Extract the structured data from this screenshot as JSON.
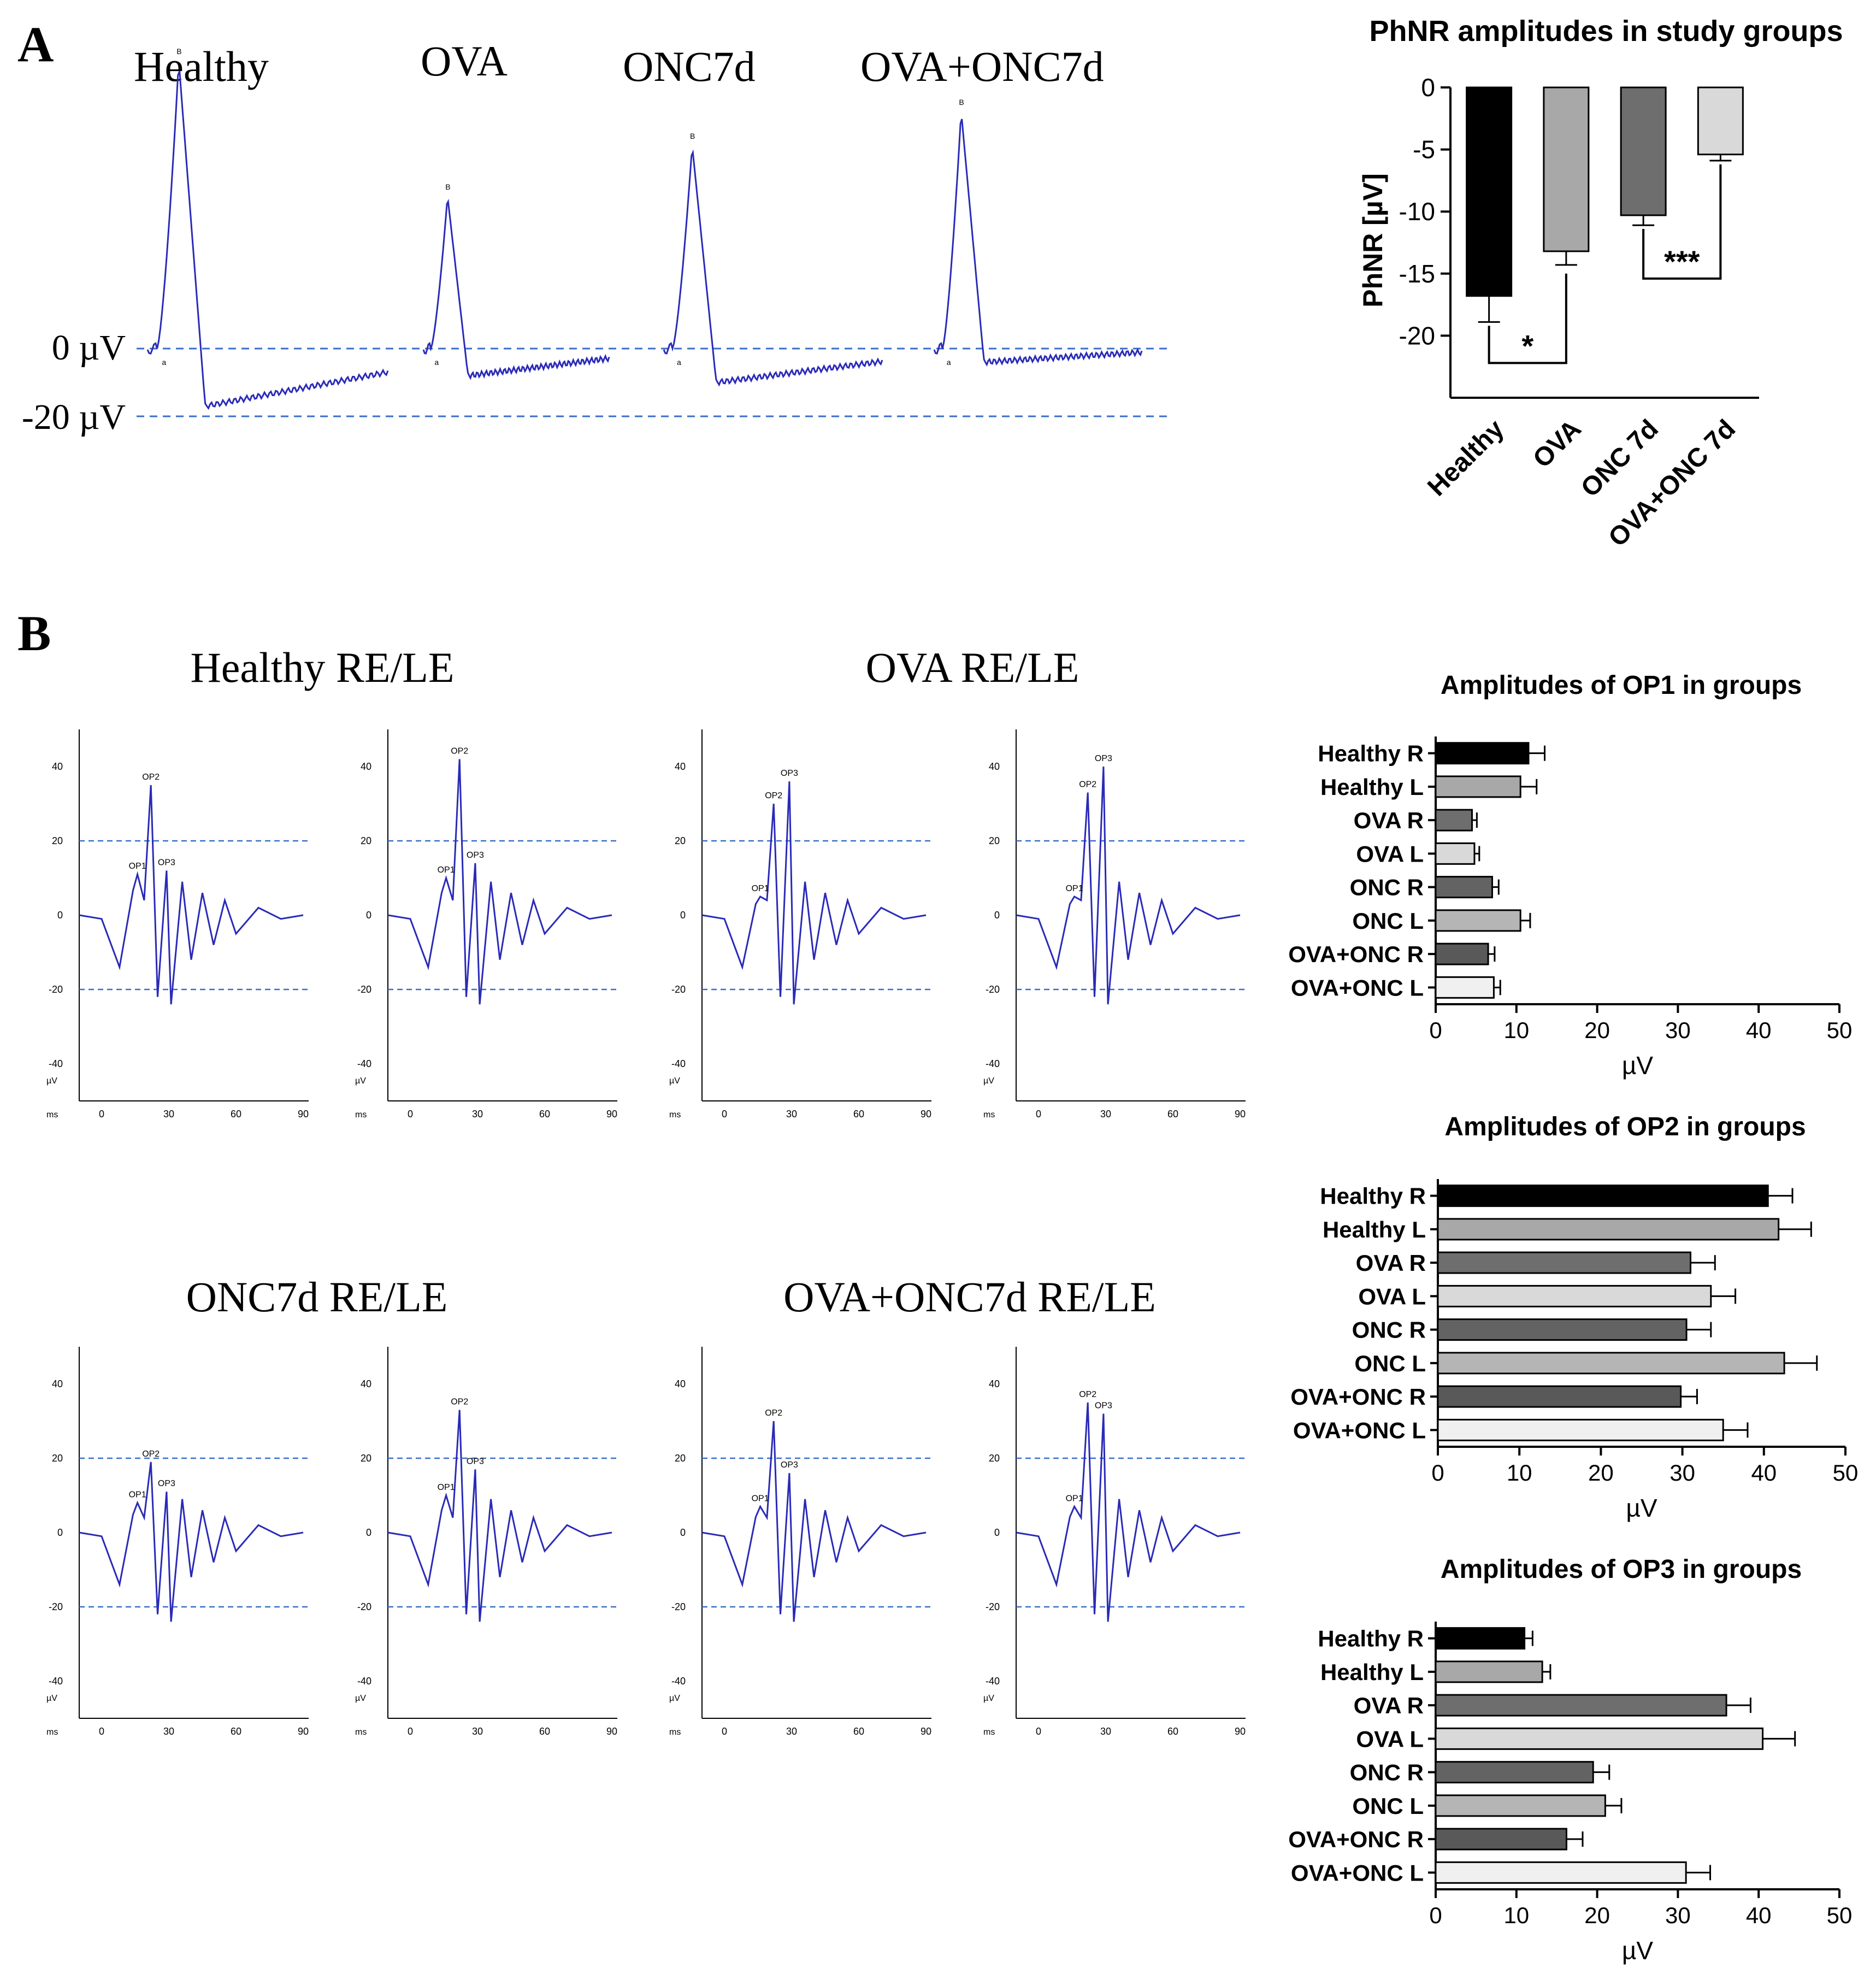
{
  "panel_labels": {
    "a": "A",
    "b": "B"
  },
  "colors": {
    "trace": "#2a2ab8",
    "guide": "#3a6ec8",
    "black": "#000000",
    "bar_fills": [
      "#000000",
      "#a8a8a8",
      "#6e6e6e",
      "#d9d9d9",
      "#636363",
      "#b5b5b5",
      "#595959",
      "#f0f0f0"
    ]
  },
  "erg_a": {
    "group_labels": [
      "Healthy",
      "OVA",
      "ONC7d",
      "OVA+ONC7d"
    ],
    "baseline_label": "0 µV",
    "lower_label": "-20 µV",
    "wave_labels": {
      "a": "a",
      "b": "B"
    },
    "traces": [
      {
        "name": "Healthy",
        "b_peak_uv": 85,
        "phnr_uv": -17
      },
      {
        "name": "OVA",
        "b_peak_uv": 45,
        "phnr_uv": -8
      },
      {
        "name": "ONC7d",
        "b_peak_uv": 60,
        "phnr_uv": -10
      },
      {
        "name": "OVA+ONC7d",
        "b_peak_uv": 70,
        "phnr_uv": -4
      }
    ]
  },
  "op_panels": {
    "titles": [
      "Healthy RE/LE",
      "OVA RE/LE",
      "ONC7d RE/LE",
      "OVA+ONC7d RE/LE"
    ],
    "unit_y": "µV",
    "unit_x": "ms",
    "y_ticks": [
      "40",
      "20",
      "0",
      "-20",
      "-40"
    ],
    "x_ticks": [
      "0",
      "30",
      "60",
      "90"
    ],
    "op_labels": [
      "OP1",
      "OP2",
      "OP3"
    ],
    "traces": [
      {
        "group": "Healthy",
        "eye": "RE",
        "ops": [
          11,
          35,
          12
        ]
      },
      {
        "group": "Healthy",
        "eye": "LE",
        "ops": [
          10,
          42,
          14
        ]
      },
      {
        "group": "OVA",
        "eye": "RE",
        "ops": [
          5,
          30,
          36
        ]
      },
      {
        "group": "OVA",
        "eye": "LE",
        "ops": [
          5,
          33,
          40
        ]
      },
      {
        "group": "ONC7d",
        "eye": "RE",
        "ops": [
          8,
          19,
          11
        ]
      },
      {
        "group": "ONC7d",
        "eye": "LE",
        "ops": [
          10,
          33,
          17
        ]
      },
      {
        "group": "OVA+ONC7d",
        "eye": "RE",
        "ops": [
          7,
          30,
          16
        ]
      },
      {
        "group": "OVA+ONC7d",
        "eye": "LE",
        "ops": [
          7,
          35,
          32
        ]
      }
    ]
  },
  "chart_data": [
    {
      "type": "bar",
      "orientation": "vertical",
      "title": "PhNR amplitudes in study groups",
      "xlabel": "",
      "ylabel": "PhNR [µV]",
      "categories": [
        "Healthy",
        "OVA",
        "ONC 7d",
        "OVA+ONC 7d"
      ],
      "values": [
        -16.8,
        -13.2,
        -10.3,
        -5.4
      ],
      "errors": [
        2.1,
        1.1,
        0.8,
        0.5
      ],
      "ylim": [
        -25,
        0
      ],
      "y_ticks": [
        0,
        -5,
        -10,
        -15,
        -20
      ],
      "significance": [
        {
          "between": [
            "Healthy",
            "OVA"
          ],
          "label": "*"
        },
        {
          "between": [
            "ONC 7d",
            "OVA+ONC 7d"
          ],
          "label": "***"
        }
      ]
    },
    {
      "type": "bar",
      "orientation": "horizontal",
      "title": "Amplitudes of OP1 in groups",
      "xlabel": "µV",
      "categories": [
        "Healthy R",
        "Healthy L",
        "OVA R",
        "OVA L",
        "ONC R",
        "ONC L",
        "OVA+ONC R",
        "OVA+ONC L"
      ],
      "values": [
        11.5,
        10.5,
        4.5,
        4.8,
        7.0,
        10.5,
        6.5,
        7.2
      ],
      "errors": [
        2.0,
        2.0,
        0.6,
        0.6,
        0.8,
        1.2,
        0.8,
        0.8
      ],
      "xlim": [
        0,
        50
      ],
      "x_ticks": [
        0,
        10,
        20,
        30,
        40,
        50
      ]
    },
    {
      "type": "bar",
      "orientation": "horizontal",
      "title": "Amplitudes of OP2 in groups",
      "xlabel": "µV",
      "categories": [
        "Healthy R",
        "Healthy L",
        "OVA R",
        "OVA L",
        "ONC R",
        "ONC L",
        "OVA+ONC R",
        "OVA+ONC L"
      ],
      "values": [
        40.5,
        41.8,
        31.0,
        33.5,
        30.5,
        42.5,
        29.8,
        35.0
      ],
      "errors": [
        3.0,
        4.0,
        3.0,
        3.0,
        3.0,
        4.0,
        2.0,
        3.0
      ],
      "xlim": [
        0,
        50
      ],
      "x_ticks": [
        0,
        10,
        20,
        30,
        40,
        50
      ]
    },
    {
      "type": "bar",
      "orientation": "horizontal",
      "title": "Amplitudes of OP3 in groups",
      "xlabel": "µV",
      "categories": [
        "Healthy R",
        "Healthy L",
        "OVA R",
        "OVA L",
        "ONC R",
        "ONC L",
        "OVA+ONC R",
        "OVA+ONC L"
      ],
      "values": [
        11.0,
        13.2,
        36.0,
        40.5,
        19.5,
        21.0,
        16.2,
        31.0
      ],
      "errors": [
        1.0,
        1.0,
        3.0,
        4.0,
        2.0,
        2.0,
        2.0,
        3.0
      ],
      "xlim": [
        0,
        50
      ],
      "x_ticks": [
        0,
        10,
        20,
        30,
        40,
        50
      ]
    }
  ]
}
